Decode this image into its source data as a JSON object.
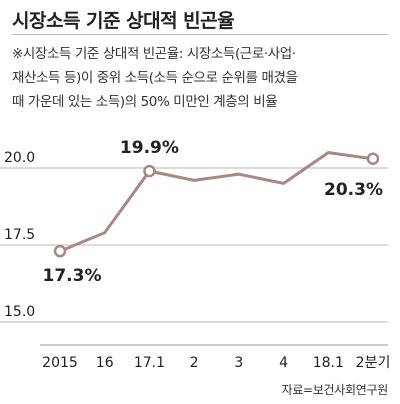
{
  "title": "시장소득 기준 상대적 빈곤율",
  "note_lines": [
    "※시장소득 기준 상대적 빈곤율: 시장소득(근로·사업·",
    "재산소득 등)이 중위 소득(소득 순으로 순위를 매겼을",
    "때 가운데 있는 소득)의 50% 미만인 계층의 비율"
  ],
  "source": "자료=보건사회연구원",
  "colors": {
    "line": "#a88884",
    "marker_fill": "#ffffff",
    "gridline": "#bbbbbb",
    "text": "#222222"
  },
  "chart_data": {
    "type": "line",
    "categories": [
      "2015",
      "16",
      "17.1",
      "2",
      "3",
      "4",
      "18.1",
      "2분기"
    ],
    "values": [
      17.3,
      17.9,
      19.9,
      19.6,
      19.8,
      19.5,
      20.5,
      20.3
    ],
    "ylim": [
      15.0,
      20.0
    ],
    "yticks": [
      "20.0",
      "17.5",
      "15.0"
    ],
    "ytick_values": [
      20.0,
      17.5,
      15.0
    ],
    "annotations": [
      {
        "index": 0,
        "label": "17.3%"
      },
      {
        "index": 2,
        "label": "19.9%"
      },
      {
        "index": 7,
        "label": "20.3%"
      }
    ],
    "markers_at": [
      0,
      2,
      7
    ],
    "grid": true
  }
}
